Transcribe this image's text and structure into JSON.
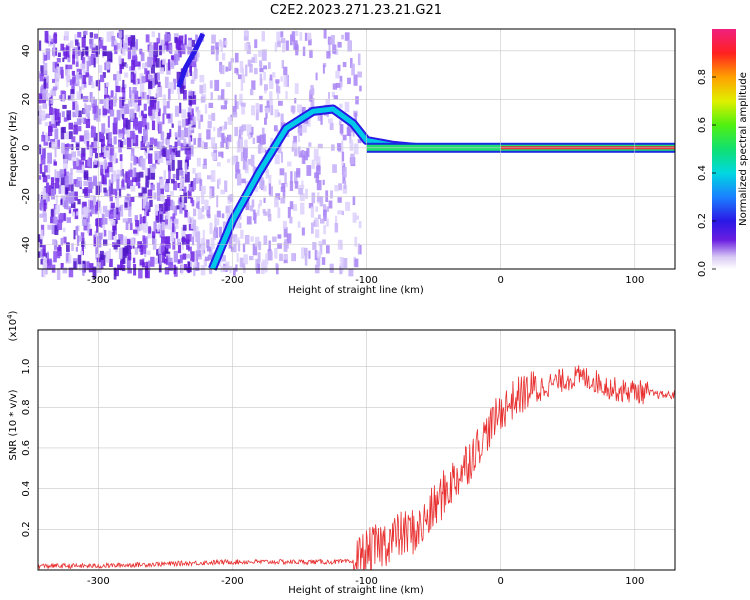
{
  "chart_data": [
    {
      "type": "heatmap",
      "title": "C2E2.2023.271.23.21.G21",
      "xlabel": "Height of straight line (km)",
      "ylabel": "Frequency (Hz)",
      "xlim": [
        -345,
        130
      ],
      "ylim": [
        -50,
        49
      ],
      "xticks": [
        -300,
        -200,
        -100,
        0,
        100
      ],
      "yticks": [
        -40,
        -20,
        0,
        20,
        40
      ],
      "grid": true,
      "colorbar": {
        "label": "Normalized spectral amplitude",
        "range": [
          0,
          1
        ],
        "ticks": [
          "0.0",
          "0.2",
          "0.4",
          "0.6",
          "0.8"
        ]
      },
      "ridge": {
        "x": [
          -215,
          -200,
          -180,
          -160,
          -140,
          -125,
          -110,
          -100,
          -80,
          -60,
          -40,
          -20,
          0,
          50,
          100,
          130
        ],
        "y": [
          -50,
          -30,
          -10,
          8,
          15,
          16,
          10,
          3,
          1,
          0,
          0,
          0,
          0,
          0,
          0,
          0
        ]
      },
      "secondary_branch": {
        "x": [
          -240,
          -235,
          -228,
          -222
        ],
        "y": [
          25,
          33,
          40,
          47
        ]
      }
    },
    {
      "type": "line",
      "xlabel": "Height of straight line (km)",
      "ylabel": "SNR (10 * v/v)",
      "scale_note": "(x10",
      "scale_exp": "4",
      "scale_close": ")",
      "xlim": [
        -345,
        130
      ],
      "ylim": [
        0,
        1.18
      ],
      "xticks": [
        -300,
        -200,
        -100,
        0,
        100
      ],
      "yticks": [
        0.2,
        0.4,
        0.6,
        0.8,
        1.0
      ],
      "ytick_labels": [
        "0.2",
        "0.4",
        "0.6",
        "0.8",
        "1.0"
      ],
      "grid": true,
      "series": [
        {
          "color": "#e83030",
          "x": [
            -345,
            -300,
            -250,
            -200,
            -150,
            -110,
            -100,
            -90,
            -80,
            -70,
            -60,
            -50,
            -40,
            -30,
            -20,
            -10,
            0,
            10,
            20,
            30,
            40,
            50,
            60,
            70,
            80,
            90,
            100,
            110,
            120,
            130
          ],
          "y": [
            0.02,
            0.02,
            0.03,
            0.04,
            0.04,
            0.04,
            0.08,
            0.12,
            0.16,
            0.18,
            0.2,
            0.3,
            0.4,
            0.48,
            0.58,
            0.68,
            0.78,
            0.84,
            0.88,
            0.9,
            0.92,
            0.94,
            0.95,
            0.93,
            0.9,
            0.88,
            0.88,
            0.87,
            0.86,
            0.86
          ]
        }
      ]
    }
  ]
}
